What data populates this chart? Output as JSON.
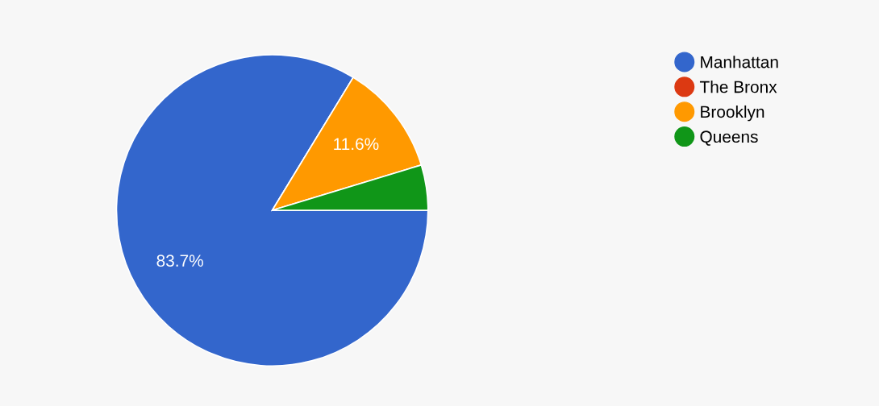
{
  "chart_data": {
    "type": "pie",
    "categories": [
      "Manhattan",
      "The Bronx",
      "Brooklyn",
      "Queens"
    ],
    "values": [
      83.7,
      0,
      11.6,
      4.7
    ],
    "colors": [
      "#3366cc",
      "#dc3912",
      "#ff9900",
      "#109618"
    ],
    "value_labels": [
      "83.7%",
      null,
      "11.6%",
      null
    ],
    "legend": "top right"
  }
}
